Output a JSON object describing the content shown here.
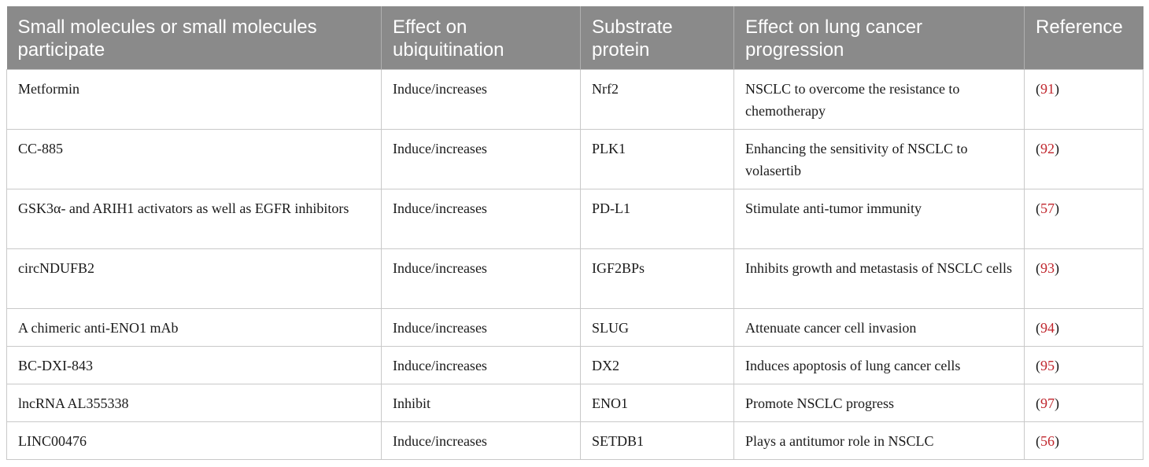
{
  "table": {
    "headers": [
      "Small molecules or small molecules participate",
      "Effect on ubiquitination",
      "Substrate protein",
      "Effect on lung cancer progression",
      "Reference"
    ],
    "rows": [
      {
        "molecule": "Metformin",
        "effect": "Induce/increases",
        "substrate": "Nrf2",
        "progression": "NSCLC to overcome the resistance to chemotherapy",
        "ref_open": "(",
        "ref": "91",
        "ref_close": ")"
      },
      {
        "molecule": "CC-885",
        "effect": "Induce/increases",
        "substrate": "PLK1",
        "progression": "Enhancing the sensitivity of NSCLC to volasertib",
        "ref_open": "(",
        "ref": "92",
        "ref_close": ")"
      },
      {
        "molecule": "GSK3α- and ARIH1 activators as well as EGFR inhibitors",
        "effect": "Induce/increases",
        "substrate": "PD-L1",
        "progression": "Stimulate anti-tumor immunity",
        "ref_open": "(",
        "ref": "57",
        "ref_close": ")"
      },
      {
        "molecule": "circNDUFB2",
        "effect": "Induce/increases",
        "substrate": "IGF2BPs",
        "progression": "Inhibits growth and metastasis of NSCLC cells",
        "ref_open": "(",
        "ref": "93",
        "ref_close": ")"
      },
      {
        "molecule": "A chimeric anti-ENO1 mAb",
        "effect": "Induce/increases",
        "substrate": "SLUG",
        "progression": "Attenuate cancer cell invasion",
        "ref_open": "(",
        "ref": "94",
        "ref_close": ")"
      },
      {
        "molecule": "BC-DXI-843",
        "effect": "Induce/increases",
        "substrate": "DX2",
        "progression": "Induces apoptosis of lung cancer cells",
        "ref_open": "(",
        "ref": "95",
        "ref_close": ")"
      },
      {
        "molecule": "lncRNA AL355338",
        "effect": "Inhibit",
        "substrate": "ENO1",
        "progression": "Promote NSCLC progress",
        "ref_open": "(",
        "ref": "97",
        "ref_close": ")"
      },
      {
        "molecule": "LINC00476",
        "effect": "Induce/increases",
        "substrate": "SETDB1",
        "progression": "Plays a antitumor role in NSCLC",
        "ref_open": "(",
        "ref": "56",
        "ref_close": ")"
      }
    ]
  },
  "colors": {
    "header_bg": "#8a8a8a",
    "reference_link": "#c0262d"
  }
}
